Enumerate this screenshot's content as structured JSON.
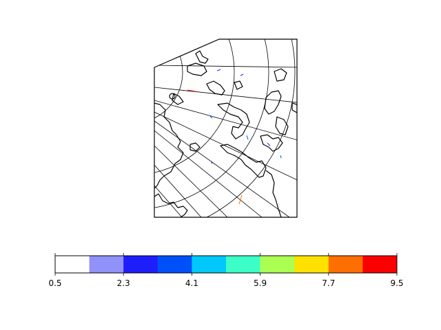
{
  "colorbar": {
    "ticks": [
      "0.5",
      "2.3",
      "4.1",
      "5.9",
      "7.7",
      "9.5"
    ],
    "colors": [
      "#ffffff",
      "#9191fa",
      "#1e1efa",
      "#0050fa",
      "#00c8fa",
      "#3cffc8",
      "#aaff50",
      "#ffe100",
      "#ff6e00",
      "#fa0000"
    ]
  },
  "wind_marks": [
    {
      "color": "#1e1efa"
    },
    {
      "color": "#1e1efa"
    },
    {
      "color": "#0050fa"
    },
    {
      "color": "#0050fa"
    },
    {
      "color": "#1e1efa"
    },
    {
      "color": "#0050fa"
    },
    {
      "color": "#ff6e00"
    },
    {
      "color": "#fa0000"
    },
    {
      "color": "#1e1efa"
    }
  ]
}
